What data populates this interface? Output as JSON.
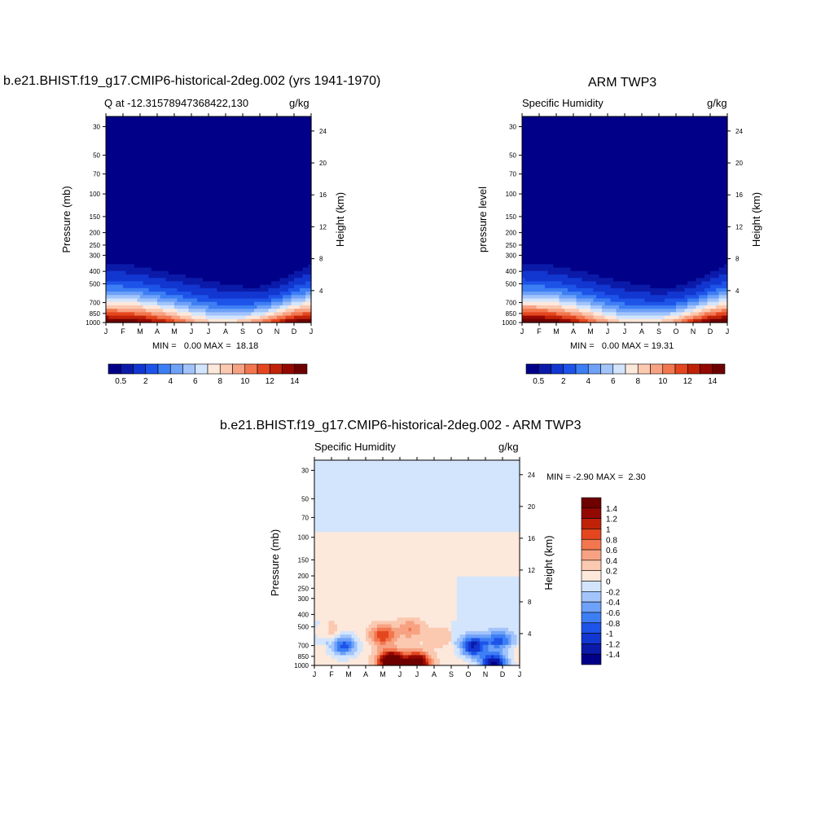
{
  "chart_data": [
    {
      "type": "heatmap",
      "title": "b.e21.BHIST.f19_g17.CMIP6-historical-2deg.002 (yrs 1941-1970)",
      "subtitle_left": "Q at -12.31578947368422,130",
      "subtitle_right": "g/kg",
      "xlabel": "",
      "ylabel": "Pressure (mb)",
      "ylabel_right": "Height (km)",
      "x_ticks": [
        "J",
        "F",
        "M",
        "A",
        "M",
        "J",
        "J",
        "A",
        "S",
        "O",
        "N",
        "D",
        "J"
      ],
      "y_ticks": [
        30,
        50,
        70,
        100,
        150,
        200,
        250,
        300,
        400,
        500,
        700,
        850,
        1000
      ],
      "y_right_ticks": [
        4,
        8,
        12,
        16,
        20,
        24
      ],
      "scale_y": "log",
      "ylim": [
        1000,
        25
      ],
      "levels": [
        0.5,
        1,
        2,
        3,
        4,
        5,
        6,
        7,
        8,
        9,
        10,
        11,
        12,
        13,
        14
      ],
      "colorbar_labels": [
        "0.5",
        "2",
        "4",
        "6",
        "8",
        "10",
        "12",
        "14"
      ],
      "moist_top_pressure": [
        300,
        305,
        320,
        345,
        360,
        385,
        410,
        440,
        465,
        470,
        430,
        360,
        310,
        300
      ],
      "surface_q": [
        15.5,
        15.2,
        14.8,
        13.5,
        11.8,
        10.0,
        8.5,
        8.2,
        9.0,
        10.5,
        12.8,
        14.8,
        15.5,
        15.5
      ],
      "min_label": "MIN =",
      "min_value": "0.00",
      "max_label": "MAX =",
      "max_value": "18.18"
    },
    {
      "type": "heatmap",
      "title": "ARM TWP3",
      "subtitle_left": "Specific Humidity",
      "subtitle_right": "g/kg",
      "xlabel": "",
      "ylabel": "pressure level",
      "ylabel_right": "Height (km)",
      "x_ticks": [
        "J",
        "F",
        "M",
        "A",
        "M",
        "J",
        "J",
        "A",
        "S",
        "O",
        "N",
        "D",
        "J"
      ],
      "y_ticks": [
        30,
        50,
        70,
        100,
        150,
        200,
        250,
        300,
        400,
        500,
        700,
        850,
        1000
      ],
      "y_right_ticks": [
        4,
        8,
        12,
        16,
        20,
        24
      ],
      "scale_y": "log",
      "ylim": [
        1000,
        25
      ],
      "levels": [
        0.5,
        1,
        2,
        3,
        4,
        5,
        6,
        7,
        8,
        9,
        10,
        11,
        12,
        13,
        14
      ],
      "colorbar_labels": [
        "0.5",
        "2",
        "4",
        "6",
        "8",
        "10",
        "12",
        "14"
      ],
      "moist_top_pressure": [
        300,
        305,
        315,
        340,
        360,
        390,
        420,
        450,
        475,
        470,
        430,
        360,
        310,
        300
      ],
      "surface_q": [
        16.0,
        15.8,
        15.0,
        13.5,
        11.5,
        9.5,
        8.2,
        8.0,
        8.6,
        10.2,
        12.8,
        15.0,
        16.0,
        16.0
      ],
      "min_label": "MIN =",
      "min_value": "0.00",
      "max_label": "MAX =",
      "max_value": "19.31"
    },
    {
      "type": "heatmap",
      "title": "b.e21.BHIST.f19_g17.CMIP6-historical-2deg.002 - ARM TWP3",
      "subtitle_left": "Specific Humidity",
      "subtitle_right": "g/kg",
      "xlabel": "",
      "ylabel": "Pressure (mb)",
      "ylabel_right": "Height (km)",
      "x_ticks": [
        "J",
        "F",
        "M",
        "A",
        "M",
        "J",
        "J",
        "A",
        "S",
        "O",
        "N",
        "D",
        "J"
      ],
      "y_ticks": [
        30,
        50,
        70,
        100,
        150,
        200,
        250,
        300,
        400,
        500,
        700,
        850,
        1000
      ],
      "y_right_ticks": [
        4,
        8,
        12,
        16,
        20,
        24
      ],
      "scale_y": "log",
      "ylim": [
        1000,
        25
      ],
      "levels": [
        -1.4,
        -1.2,
        -1,
        -0.8,
        -0.6,
        -0.4,
        -0.2,
        0,
        0.2,
        0.4,
        0.6,
        0.8,
        1,
        1.2,
        1.4
      ],
      "colorbar_labels": [
        "1.4",
        "1.2",
        "1",
        "0.8",
        "0.6",
        "0.4",
        "0.2",
        "0",
        "-0.2",
        "-0.4",
        "-0.6",
        "-0.8",
        "-1",
        "-1.2",
        "-1.4"
      ],
      "min_label": "MIN =",
      "min_value": "-2.90",
      "max_label": "MAX =",
      "max_value": "2.30",
      "features": [
        {
          "month": 4.0,
          "pressure": 580,
          "value": 0.9
        },
        {
          "month": 5.6,
          "pressure": 520,
          "value": 0.5
        },
        {
          "month": 7.3,
          "pressure": 600,
          "value": 0.3
        },
        {
          "month": 4.5,
          "pressure": 930,
          "value": 2.1
        },
        {
          "month": 6.0,
          "pressure": 950,
          "value": 1.7
        },
        {
          "month": 1.7,
          "pressure": 700,
          "value": -1.0
        },
        {
          "month": 9.3,
          "pressure": 720,
          "value": -1.3
        },
        {
          "month": 10.8,
          "pressure": 650,
          "value": -0.8
        },
        {
          "month": 10.5,
          "pressure": 970,
          "value": -1.6
        },
        {
          "month": 0.8,
          "pressure": 540,
          "value": 0.3
        }
      ]
    }
  ],
  "colors": {
    "fill_levels": [
      "#000088",
      "#0b1aa8",
      "#1236d0",
      "#1d53e8",
      "#3d7ef4",
      "#6ea1f8",
      "#a2c4fb",
      "#d3e5fc",
      "#fde8dc",
      "#fbc8b0",
      "#f7a283",
      "#f2774e",
      "#e4461f",
      "#c02208",
      "#940802",
      "#6e0000"
    ]
  }
}
